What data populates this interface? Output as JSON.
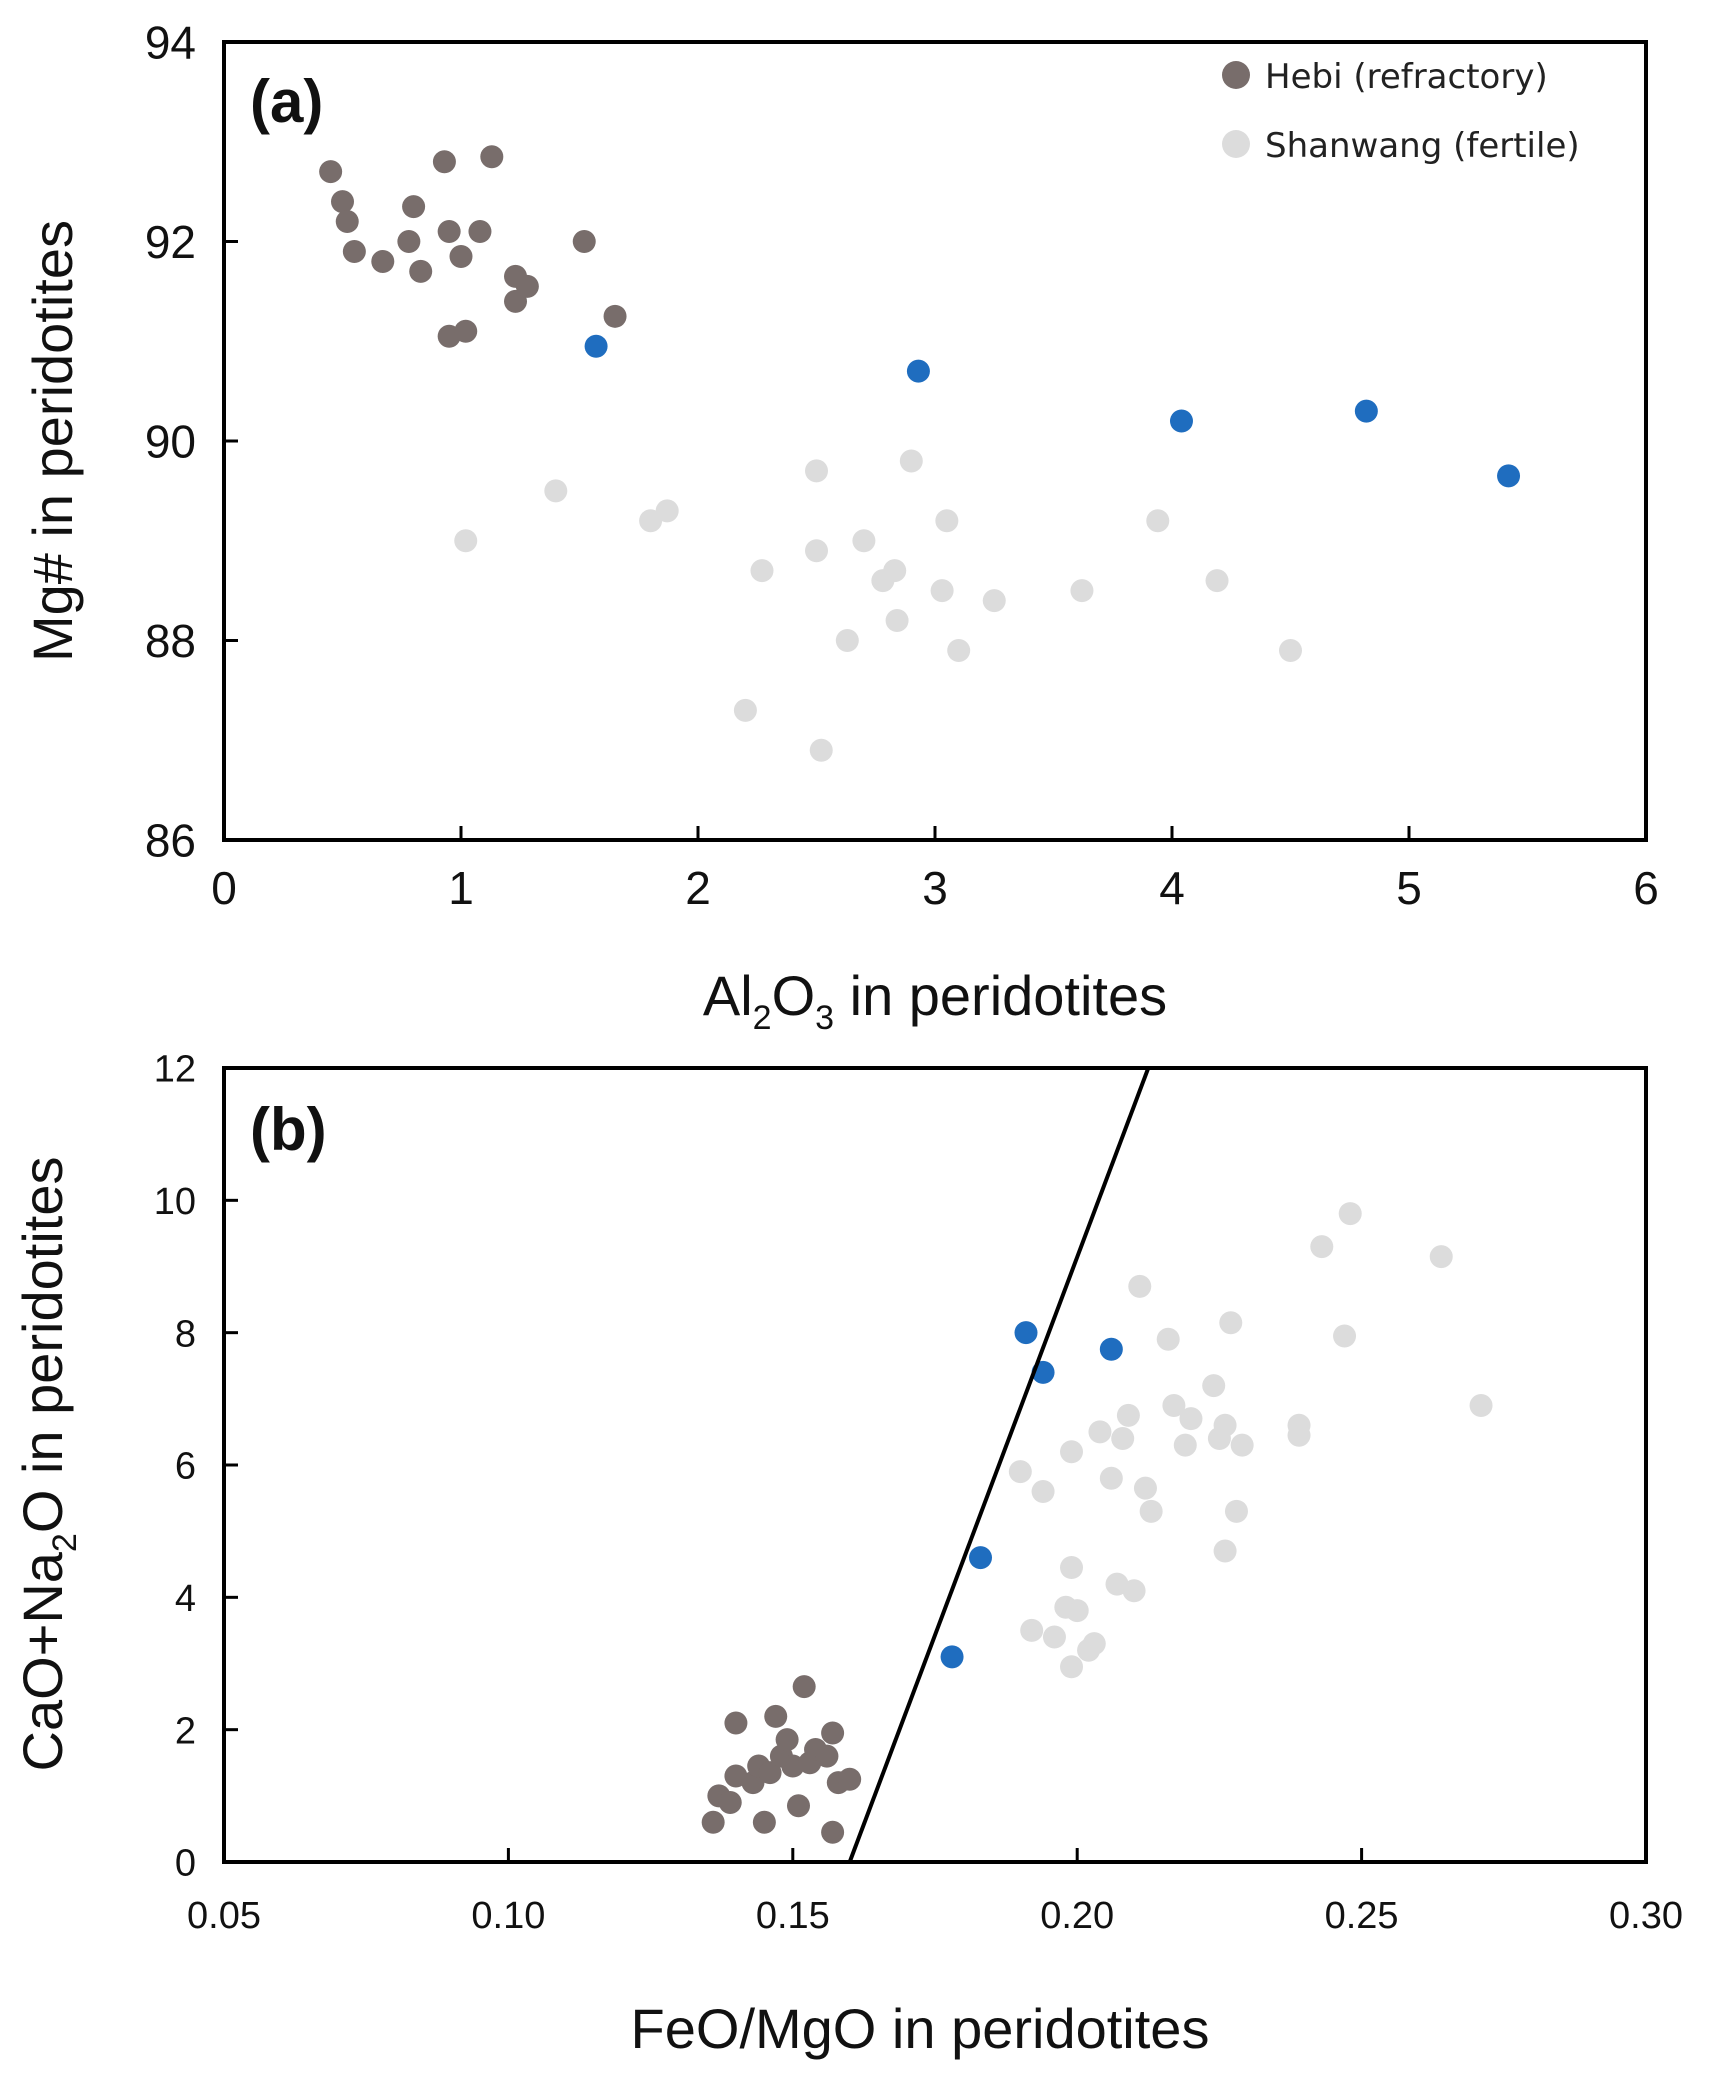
{
  "colors": {
    "hebi": "#786d6b",
    "shanwang": "#dcdcdc",
    "blue": "#1f6dbf",
    "axis": "#000000"
  },
  "chart_data": [
    {
      "type": "scatter",
      "panel_label": "(a)",
      "xlabel": {
        "pre": "Al",
        "sub1": "2",
        "mid": "O",
        "sub2": "3",
        "post": " in peridotites"
      },
      "ylabel": "Mg# in peridotites",
      "xlim": [
        0,
        6
      ],
      "ylim": [
        86,
        94
      ],
      "xticks": [
        0,
        1,
        2,
        3,
        4,
        5,
        6
      ],
      "yticks": [
        86,
        88,
        90,
        92,
        94
      ],
      "xtick_labels": [
        "0",
        "1",
        "2",
        "3",
        "4",
        "5",
        "6"
      ],
      "ytick_labels": [
        "86",
        "88",
        "90",
        "92",
        "94"
      ],
      "legend": {
        "position": "top-right",
        "entries": [
          {
            "label": "Hebi (refractory)",
            "series": "hebi"
          },
          {
            "label": "Shanwang (fertile)",
            "series": "shanwang"
          }
        ]
      },
      "series": [
        {
          "name": "shanwang",
          "points": [
            [
              1.02,
              89.0
            ],
            [
              1.4,
              89.5
            ],
            [
              1.8,
              89.2
            ],
            [
              1.87,
              89.3
            ],
            [
              2.2,
              87.3
            ],
            [
              2.27,
              88.7
            ],
            [
              2.5,
              89.7
            ],
            [
              2.5,
              88.9
            ],
            [
              2.52,
              86.9
            ],
            [
              2.63,
              88.0
            ],
            [
              2.7,
              89.0
            ],
            [
              2.78,
              88.6
            ],
            [
              2.83,
              88.7
            ],
            [
              2.84,
              88.2
            ],
            [
              2.9,
              89.8
            ],
            [
              3.03,
              88.5
            ],
            [
              3.05,
              89.2
            ],
            [
              3.1,
              87.9
            ],
            [
              3.25,
              88.4
            ],
            [
              3.62,
              88.5
            ],
            [
              3.94,
              89.2
            ],
            [
              4.19,
              88.6
            ],
            [
              4.5,
              87.9
            ]
          ]
        },
        {
          "name": "hebi",
          "points": [
            [
              0.45,
              92.7
            ],
            [
              0.5,
              92.4
            ],
            [
              0.52,
              92.2
            ],
            [
              0.55,
              91.9
            ],
            [
              0.67,
              91.8
            ],
            [
              0.78,
              92.0
            ],
            [
              0.8,
              92.35
            ],
            [
              0.83,
              91.7
            ],
            [
              0.93,
              92.8
            ],
            [
              0.95,
              92.1
            ],
            [
              0.95,
              91.05
            ],
            [
              1.0,
              91.85
            ],
            [
              1.02,
              91.1
            ],
            [
              1.08,
              92.1
            ],
            [
              1.13,
              92.85
            ],
            [
              1.23,
              91.65
            ],
            [
              1.23,
              91.4
            ],
            [
              1.28,
              91.55
            ],
            [
              1.52,
              92.0
            ],
            [
              1.65,
              91.25
            ]
          ]
        },
        {
          "name": "blue",
          "points": [
            [
              1.57,
              90.95
            ],
            [
              2.93,
              90.7
            ],
            [
              4.04,
              90.2
            ],
            [
              4.82,
              90.3
            ],
            [
              5.42,
              89.65
            ]
          ]
        }
      ]
    },
    {
      "type": "scatter",
      "panel_label": "(b)",
      "xlabel": "FeO/MgO in peridotites",
      "ylabel": {
        "pre": "CaO+Na",
        "sub1": "2",
        "post": "O in peridotites"
      },
      "xlim": [
        0.05,
        0.3
      ],
      "ylim": [
        0,
        12
      ],
      "xticks": [
        0.05,
        0.1,
        0.15,
        0.2,
        0.25,
        0.3
      ],
      "yticks": [
        0,
        2,
        4,
        6,
        8,
        10,
        12
      ],
      "xtick_labels": [
        "0.05",
        "0.10",
        "0.15",
        "0.20",
        "0.25",
        "0.30"
      ],
      "ytick_labels": [
        "0",
        "2",
        "4",
        "6",
        "8",
        "10",
        "12"
      ],
      "line": {
        "from": [
          0.16,
          0.0
        ],
        "to": [
          0.2125,
          12.0
        ]
      },
      "series": [
        {
          "name": "shanwang",
          "points": [
            [
              0.19,
              5.9
            ],
            [
              0.192,
              3.5
            ],
            [
              0.194,
              5.6
            ],
            [
              0.196,
              3.4
            ],
            [
              0.198,
              3.85
            ],
            [
              0.199,
              6.2
            ],
            [
              0.199,
              4.45
            ],
            [
              0.199,
              2.95
            ],
            [
              0.2,
              3.8
            ],
            [
              0.202,
              3.2
            ],
            [
              0.203,
              3.3
            ],
            [
              0.204,
              6.5
            ],
            [
              0.206,
              5.8
            ],
            [
              0.207,
              4.2
            ],
            [
              0.208,
              6.4
            ],
            [
              0.209,
              6.75
            ],
            [
              0.21,
              4.1
            ],
            [
              0.211,
              8.7
            ],
            [
              0.212,
              5.65
            ],
            [
              0.213,
              5.3
            ],
            [
              0.216,
              7.9
            ],
            [
              0.217,
              6.9
            ],
            [
              0.219,
              6.3
            ],
            [
              0.22,
              6.7
            ],
            [
              0.224,
              7.2
            ],
            [
              0.225,
              6.4
            ],
            [
              0.226,
              6.6
            ],
            [
              0.226,
              4.7
            ],
            [
              0.227,
              8.15
            ],
            [
              0.228,
              5.3
            ],
            [
              0.229,
              6.3
            ],
            [
              0.239,
              6.6
            ],
            [
              0.239,
              6.45
            ],
            [
              0.243,
              9.3
            ],
            [
              0.247,
              7.95
            ],
            [
              0.248,
              9.8
            ],
            [
              0.264,
              9.15
            ],
            [
              0.271,
              6.9
            ]
          ]
        },
        {
          "name": "hebi",
          "points": [
            [
              0.136,
              0.6
            ],
            [
              0.137,
              1.0
            ],
            [
              0.139,
              0.9
            ],
            [
              0.14,
              2.1
            ],
            [
              0.14,
              1.3
            ],
            [
              0.143,
              1.2
            ],
            [
              0.144,
              1.45
            ],
            [
              0.145,
              0.6
            ],
            [
              0.146,
              1.35
            ],
            [
              0.147,
              2.2
            ],
            [
              0.148,
              1.6
            ],
            [
              0.149,
              1.85
            ],
            [
              0.15,
              1.45
            ],
            [
              0.151,
              0.85
            ],
            [
              0.152,
              2.65
            ],
            [
              0.153,
              1.5
            ],
            [
              0.154,
              1.7
            ],
            [
              0.156,
              1.6
            ],
            [
              0.157,
              1.95
            ],
            [
              0.157,
              0.45
            ],
            [
              0.158,
              1.2
            ],
            [
              0.16,
              1.25
            ]
          ]
        },
        {
          "name": "blue",
          "points": [
            [
              0.178,
              3.1
            ],
            [
              0.183,
              4.6
            ],
            [
              0.191,
              8.0
            ],
            [
              0.194,
              7.4
            ],
            [
              0.206,
              7.75
            ]
          ]
        }
      ]
    }
  ]
}
